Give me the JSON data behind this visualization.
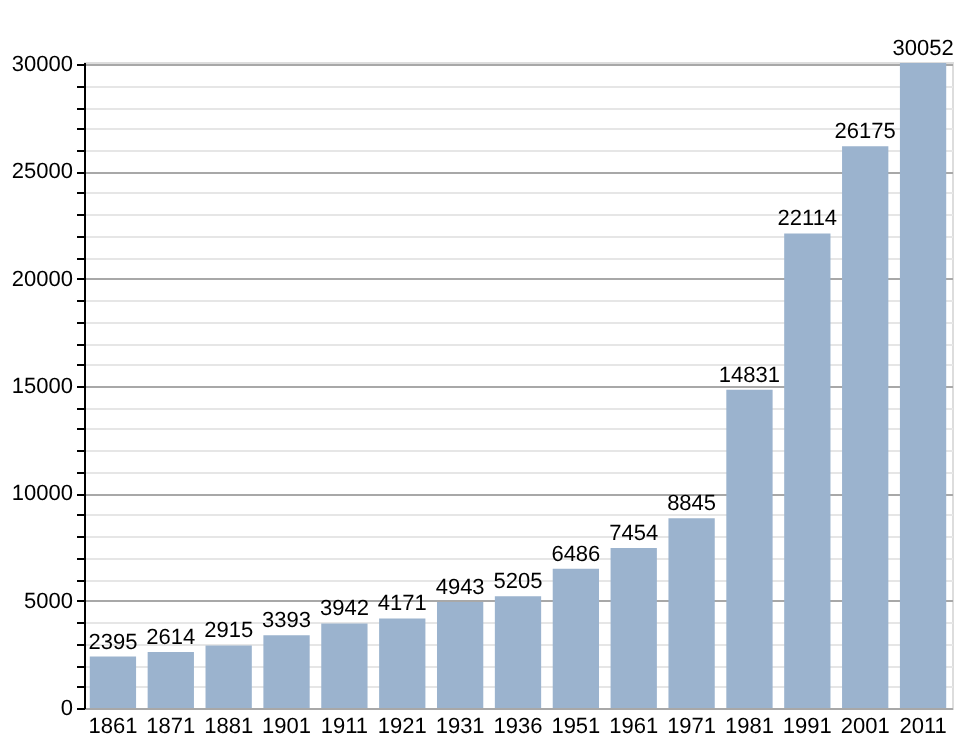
{
  "chart_data": {
    "type": "bar",
    "categories": [
      "1861",
      "1871",
      "1881",
      "1901",
      "1911",
      "1921",
      "1931",
      "1936",
      "1951",
      "1961",
      "1971",
      "1981",
      "1991",
      "2001",
      "2011"
    ],
    "values": [
      2395,
      2614,
      2915,
      3393,
      3942,
      4171,
      4943,
      5205,
      6486,
      7454,
      8845,
      14831,
      22114,
      26175,
      30052
    ],
    "color": "#9bb3ce",
    "ylim": [
      0,
      30100
    ],
    "yticks": [
      0,
      {
        "value": 1000,
        "label": null
      },
      {
        "value": 2000,
        "label": null
      },
      {
        "value": 3000,
        "label": null
      },
      {
        "value": 4000,
        "label": null
      },
      5000,
      {
        "value": 6000,
        "label": null
      },
      {
        "value": 7000,
        "label": null
      },
      {
        "value": 8000,
        "label": null
      },
      {
        "value": 9000,
        "label": null
      },
      10000,
      {
        "value": 11000,
        "label": null
      },
      {
        "value": 12000,
        "label": null
      },
      {
        "value": 13000,
        "label": null
      },
      {
        "value": 14000,
        "label": null
      },
      15000,
      {
        "value": 16000,
        "label": null
      },
      {
        "value": 17000,
        "label": null
      },
      {
        "value": 18000,
        "label": null
      },
      {
        "value": 19000,
        "label": null
      },
      20000,
      {
        "value": 21000,
        "label": null
      },
      {
        "value": 22000,
        "label": null
      },
      {
        "value": 23000,
        "label": null
      },
      {
        "value": 24000,
        "label": null
      },
      25000,
      {
        "value": 26000,
        "label": null
      },
      {
        "value": 27000,
        "label": null
      },
      {
        "value": 28000,
        "label": null
      },
      {
        "value": 29000,
        "label": null
      },
      30000
    ],
    "grid": "y",
    "data_labels": true
  }
}
